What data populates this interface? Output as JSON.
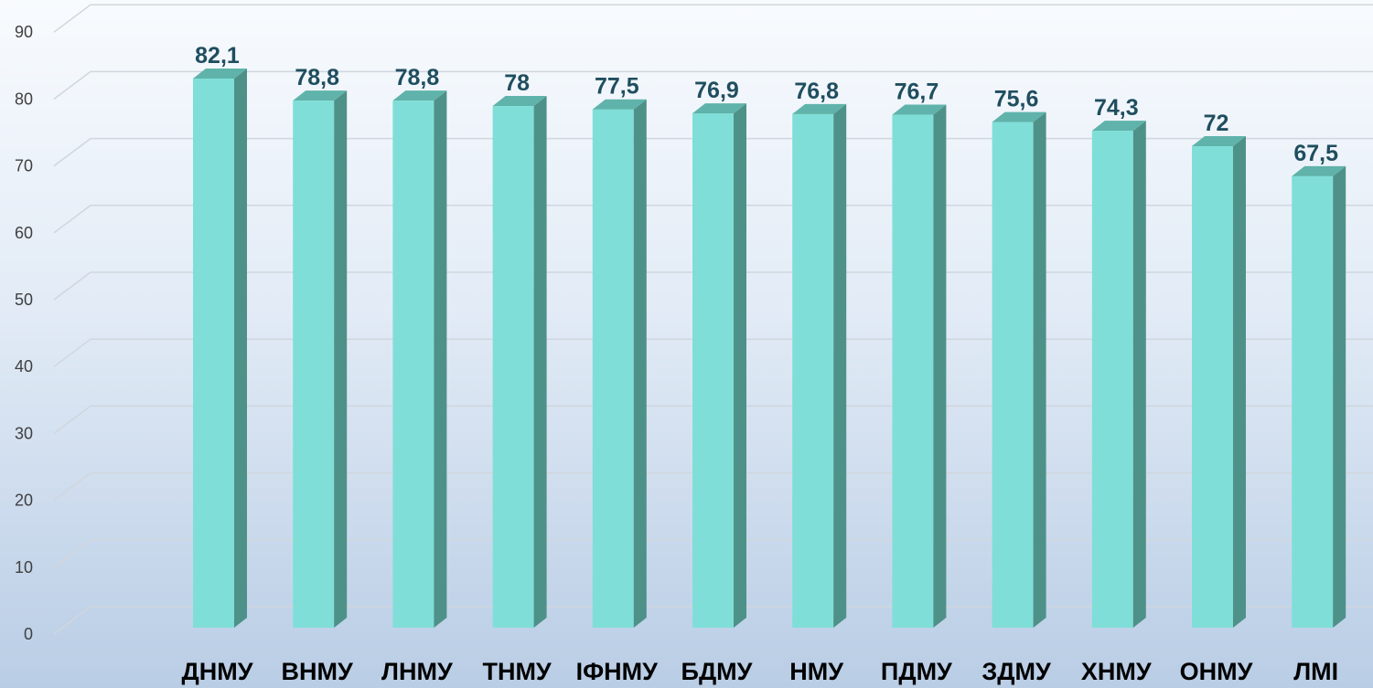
{
  "chart_data": {
    "type": "bar",
    "categories": [
      "ДНМУ",
      "ВНМУ",
      "ЛНМУ",
      "ТНМУ",
      "ІФНМУ",
      "БДМУ",
      "НМУ",
      "ПДМУ",
      "ЗДМУ",
      "ХНМУ",
      "ОНМУ",
      "ЛМІ"
    ],
    "values": [
      82.1,
      78.8,
      78.8,
      78,
      77.5,
      76.9,
      76.8,
      76.7,
      75.6,
      74.3,
      72,
      67.5
    ],
    "data_labels": [
      "82,1",
      "78,8",
      "78,8",
      "78",
      "77,5",
      "76,9",
      "76,8",
      "76,7",
      "75,6",
      "74,3",
      "72",
      "67,5"
    ],
    "y_ticks": [
      0,
      10,
      20,
      30,
      40,
      50,
      60,
      70,
      80,
      90
    ],
    "ylim": [
      0,
      90
    ],
    "grid": true,
    "legend": "none",
    "style": "3d-column",
    "colors": {
      "bar_front": "#7fdfd8",
      "bar_side": "#4e9188",
      "bar_top": "#5fb3aa",
      "gridline": "#d0d6dd",
      "data_label": "#1f4e5f",
      "tick_label": "#404040",
      "category_label": "#000000"
    }
  }
}
